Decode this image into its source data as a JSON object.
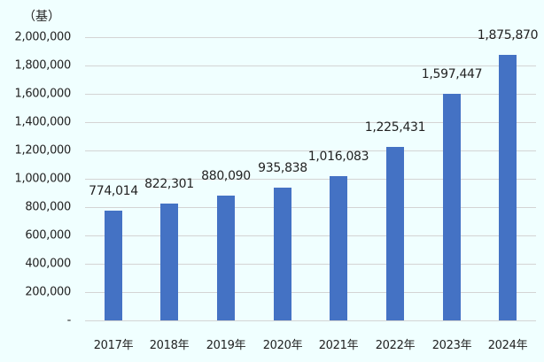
{
  "chart_data": {
    "type": "bar",
    "title": "",
    "unit_label": "（基）",
    "xlabel": "",
    "ylabel": "（基）",
    "ylim": [
      0,
      2000000
    ],
    "yticks": [
      {
        "value": 0,
        "label": "-"
      },
      {
        "value": 200000,
        "label": "200,000"
      },
      {
        "value": 400000,
        "label": "400,000"
      },
      {
        "value": 600000,
        "label": "600,000"
      },
      {
        "value": 800000,
        "label": "800,000"
      },
      {
        "value": 1000000,
        "label": "1,000,000"
      },
      {
        "value": 1200000,
        "label": "1,200,000"
      },
      {
        "value": 1400000,
        "label": "1,400,000"
      },
      {
        "value": 1600000,
        "label": "1,600,000"
      },
      {
        "value": 1800000,
        "label": "1,800,000"
      },
      {
        "value": 2000000,
        "label": "2,000,000"
      }
    ],
    "categories": [
      "2017年",
      "2018年",
      "2019年",
      "2020年",
      "2021年",
      "2022年",
      "2023年",
      "2024年"
    ],
    "values": [
      774014,
      822301,
      880090,
      935838,
      1016083,
      1225431,
      1597447,
      1875870
    ],
    "value_labels": [
      "774,014",
      "822,301",
      "880,090",
      "935,838",
      "1,016,083",
      "1,225,431",
      "1,597,447",
      "1,875,870"
    ],
    "grid": true,
    "legend": null,
    "bar_color": "#4472c4",
    "background": "#f0ffff"
  }
}
